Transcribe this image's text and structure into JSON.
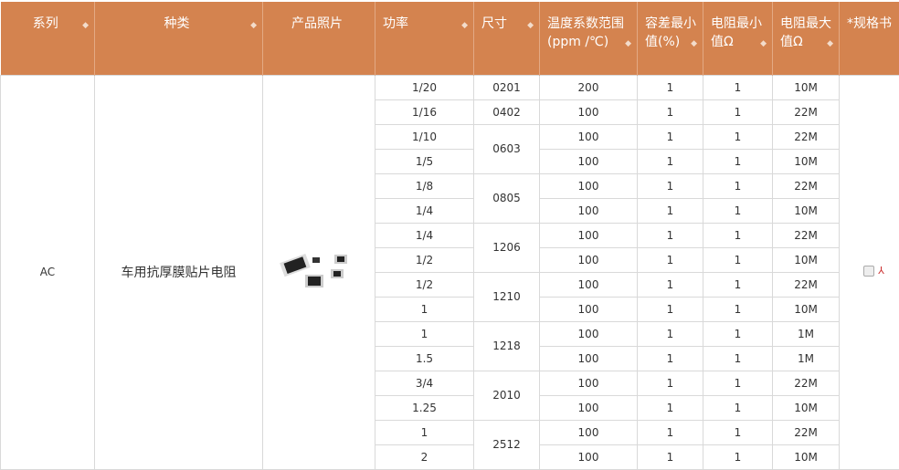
{
  "headers": [
    "系列",
    "种类",
    "产品照片",
    "功率",
    "尺寸",
    "温度系数范围(ppm /℃)",
    "容差最小值(%)",
    "电阻最小值Ω",
    "电阻最大值Ω",
    "*规格书"
  ],
  "series": "AC",
  "type": "车用抗厚膜贴片电阻",
  "rows": [
    {
      "power": "1/20",
      "size": "0201",
      "span": 1,
      "tcr": "200",
      "tol": "1",
      "rmin": "1",
      "rmax": "10M"
    },
    {
      "power": "1/16",
      "size": "0402",
      "span": 1,
      "tcr": "100",
      "tol": "1",
      "rmin": "1",
      "rmax": "22M"
    },
    {
      "power": "1/10",
      "size": "0603",
      "span": 2,
      "tcr": "100",
      "tol": "1",
      "rmin": "1",
      "rmax": "22M"
    },
    {
      "power": "1/5",
      "tcr": "100",
      "tol": "1",
      "rmin": "1",
      "rmax": "10M"
    },
    {
      "power": "1/8",
      "size": "0805",
      "span": 2,
      "tcr": "100",
      "tol": "1",
      "rmin": "1",
      "rmax": "22M"
    },
    {
      "power": "1/4",
      "tcr": "100",
      "tol": "1",
      "rmin": "1",
      "rmax": "10M"
    },
    {
      "power": "1/4",
      "size": "1206",
      "span": 2,
      "tcr": "100",
      "tol": "1",
      "rmin": "1",
      "rmax": "22M"
    },
    {
      "power": "1/2",
      "tcr": "100",
      "tol": "1",
      "rmin": "1",
      "rmax": "10M"
    },
    {
      "power": "1/2",
      "size": "1210",
      "span": 2,
      "tcr": "100",
      "tol": "1",
      "rmin": "1",
      "rmax": "22M"
    },
    {
      "power": "1",
      "tcr": "100",
      "tol": "1",
      "rmin": "1",
      "rmax": "10M"
    },
    {
      "power": "1",
      "size": "1218",
      "span": 2,
      "tcr": "100",
      "tol": "1",
      "rmin": "1",
      "rmax": "1M"
    },
    {
      "power": "1.5",
      "tcr": "100",
      "tol": "1",
      "rmin": "1",
      "rmax": "1M"
    },
    {
      "power": "3/4",
      "size": "2010",
      "span": 2,
      "tcr": "100",
      "tol": "1",
      "rmin": "1",
      "rmax": "22M"
    },
    {
      "power": "1.25",
      "tcr": "100",
      "tol": "1",
      "rmin": "1",
      "rmax": "10M"
    },
    {
      "power": "1",
      "size": "2512",
      "span": 2,
      "tcr": "100",
      "tol": "1",
      "rmin": "1",
      "rmax": "22M"
    },
    {
      "power": "2",
      "tcr": "100",
      "tol": "1",
      "rmin": "1",
      "rmax": "10M"
    }
  ],
  "colors": {
    "header": "#d4834f"
  }
}
